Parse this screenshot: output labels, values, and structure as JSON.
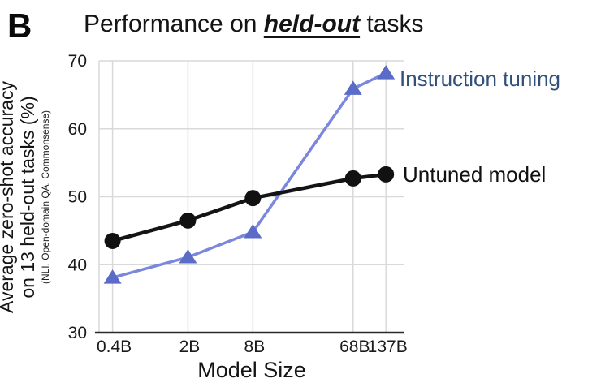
{
  "panel_label": "B",
  "title": {
    "prefix": "Performance on ",
    "emphasis": "held-out",
    "suffix": " tasks"
  },
  "chart_data": {
    "type": "line",
    "x": [
      0.4,
      2,
      8,
      68,
      137
    ],
    "x_tick_labels": [
      "0.4B",
      "2B",
      "8B",
      "68B",
      "137B"
    ],
    "x_scale": "log",
    "xlim_log": [
      0.3,
      200
    ],
    "xlabel": "Model Size",
    "ylabel_line1": "Average zero-shot accuracy",
    "ylabel_line2": "on 13 held-out tasks (%)",
    "ylabel_note": "(NLI, Open-domain QA, Commonsense)",
    "ylim": [
      30,
      70
    ],
    "y_ticks": [
      30,
      40,
      50,
      60,
      70
    ],
    "grid": true,
    "legend_position": "right-of-last-point",
    "colors": {
      "grid": "#d9d9d9",
      "axis": "#2a2a2a",
      "tick_text": "#1a1a1a"
    },
    "series": [
      {
        "name": "Instruction tuning",
        "marker": "triangle",
        "marker_color": "#5a6cc8",
        "line_color": "#7b87dd",
        "label_color": "#31507c",
        "values": [
          38.1,
          41.1,
          44.8,
          65.9,
          68.2
        ]
      },
      {
        "name": "Untuned model",
        "marker": "circle",
        "marker_color": "#111111",
        "line_color": "#141414",
        "label_color": "#111111",
        "values": [
          43.5,
          46.5,
          49.8,
          52.7,
          53.3
        ]
      }
    ]
  }
}
